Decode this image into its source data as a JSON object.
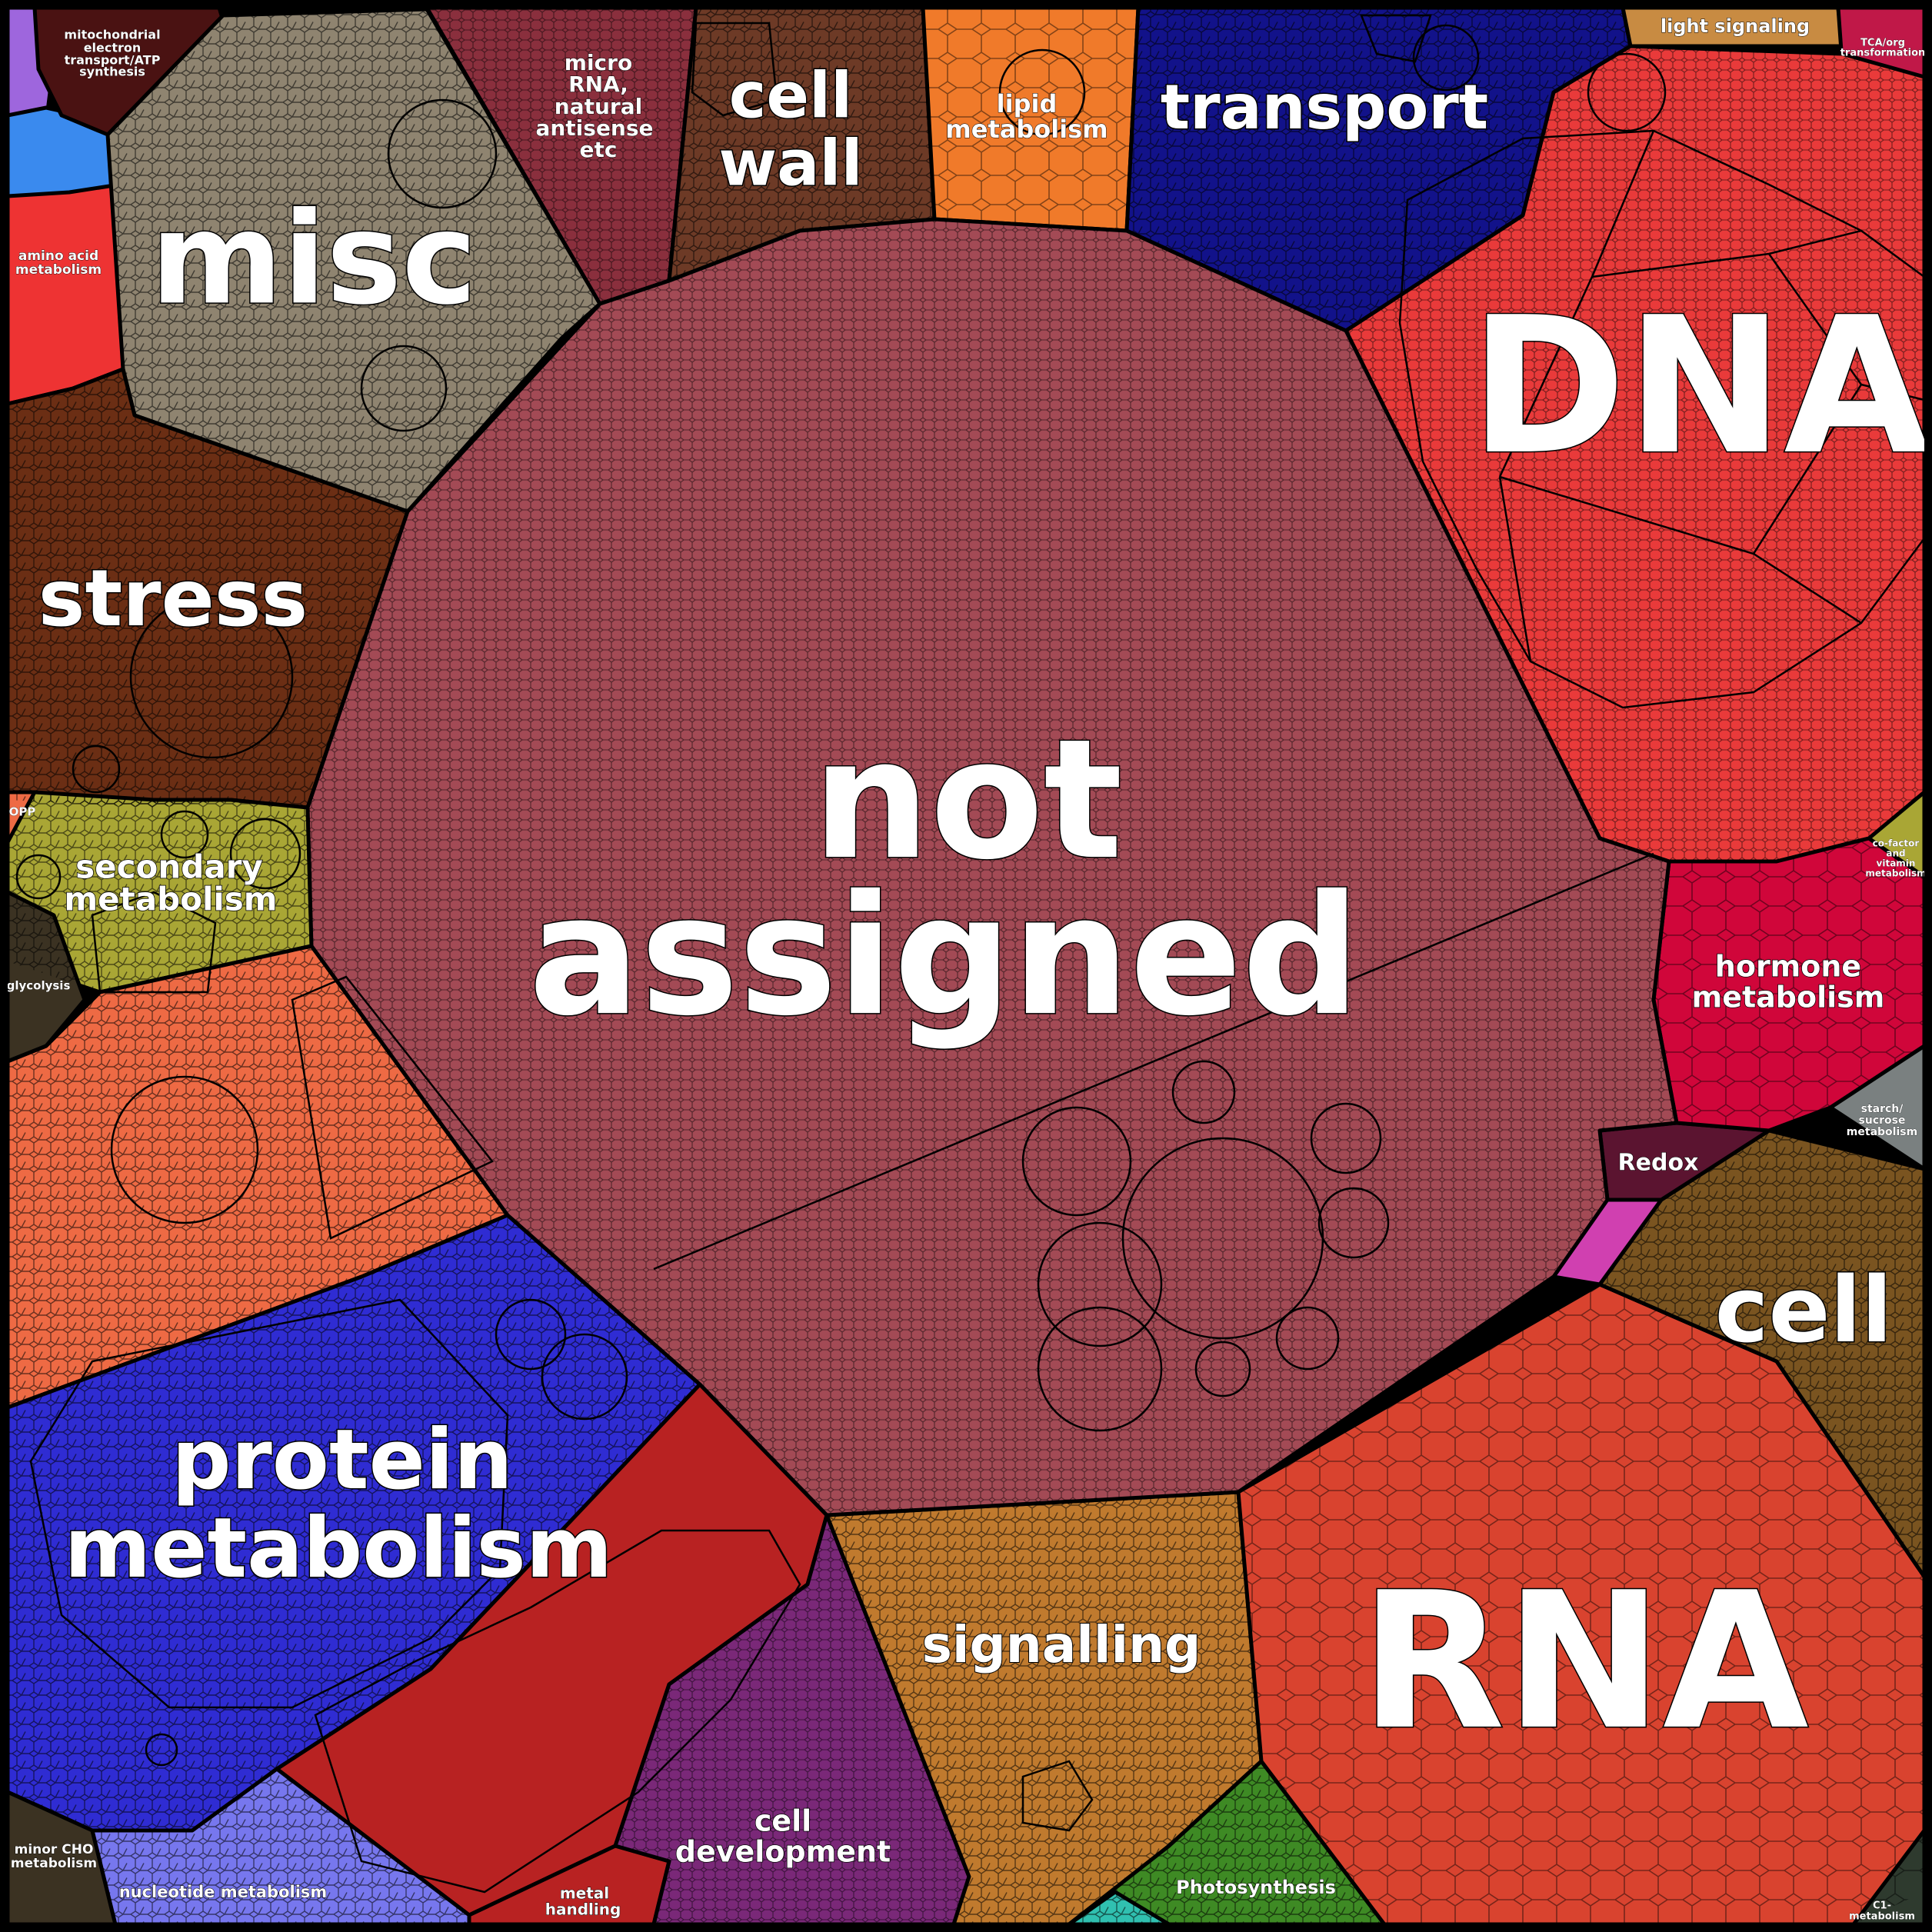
{
  "title": "",
  "colors": {
    "not_assigned": "#a34a55",
    "dna": "#e93a3a",
    "rna": "#d9432f",
    "misc": "#8f8470",
    "stress": "#6b2e14",
    "protein_metabolism": "#2f2cd3",
    "protein_red": "#b82222",
    "signalling": "#c07a2e",
    "cell": "#7a5420",
    "transport": "#12128a",
    "cell_wall": "#6d3a26",
    "microrna": "#8a2f3d",
    "lipid": "#f07a2a",
    "hormone": "#d0063a",
    "secondary": "#a9a635",
    "cell_development": "#7a2878",
    "photosynthesis": "#3e8a24",
    "nucleotide": "#7777ee",
    "amino_acid": "#ee3333",
    "orange_region": "#ee6a44",
    "redox": "#5b1430",
    "starch": "#7a8080",
    "minor_cho": "#3b3222",
    "mito": "#4a1212",
    "light": "#c88b42",
    "tca": "#c01848",
    "blue_small": "#3a8aee",
    "purple_small": "#9e66dd",
    "teal_small": "#30c0b0",
    "magenta_small": "#d040b0",
    "dark_small": "#2e3a2e"
  },
  "labels": {
    "not_assigned_1": "not",
    "not_assigned_2": "assigned",
    "dna": "DNA",
    "rna": "RNA",
    "misc": "misc",
    "stress": "stress",
    "protein_1": "protein",
    "protein_2": "metabolism",
    "signalling": "signalling",
    "cell": "cell",
    "transport": "transport",
    "cell_wall_1": "cell",
    "cell_wall_2": "wall",
    "microrna_1": "micro",
    "microrna_2": "RNA,",
    "microrna_3": "natural",
    "microrna_4": "antisense",
    "microrna_5": "etc",
    "lipid_1": "lipid",
    "lipid_2": "metabolism",
    "hormone_1": "hormone",
    "hormone_2": "metabolism",
    "secondary_1": "secondary",
    "secondary_2": "metabolism",
    "cell_dev_1": "cell",
    "cell_dev_2": "development",
    "photosynthesis": "Photosynthesis",
    "nucleotide": "nucleotide metabolism",
    "metal_1": "metal",
    "metal_2": "handling",
    "minor_cho_1": "minor CHO",
    "minor_cho_2": "metabolism",
    "amino_1": "amino acid",
    "amino_2": "metabolism",
    "mito_1": "mitochondrial",
    "mito_2": "electron",
    "mito_3": "transport/ATP",
    "mito_4": "synthesis",
    "light": "light signaling",
    "tca_1": "TCA/org",
    "tca_2": "transformation",
    "redox": "Redox",
    "opp": "OPP",
    "glycolysis": "glycolysis",
    "starch_1": "starch/",
    "starch_2": "sucrose",
    "starch_3": "metabolism",
    "cofactor_1": "co-factor",
    "cofactor_2": "and",
    "cofactor_3": "vitamin",
    "cofactor_4": "metabolism",
    "c1_1": "C1-",
    "c1_2": "metabolism"
  }
}
